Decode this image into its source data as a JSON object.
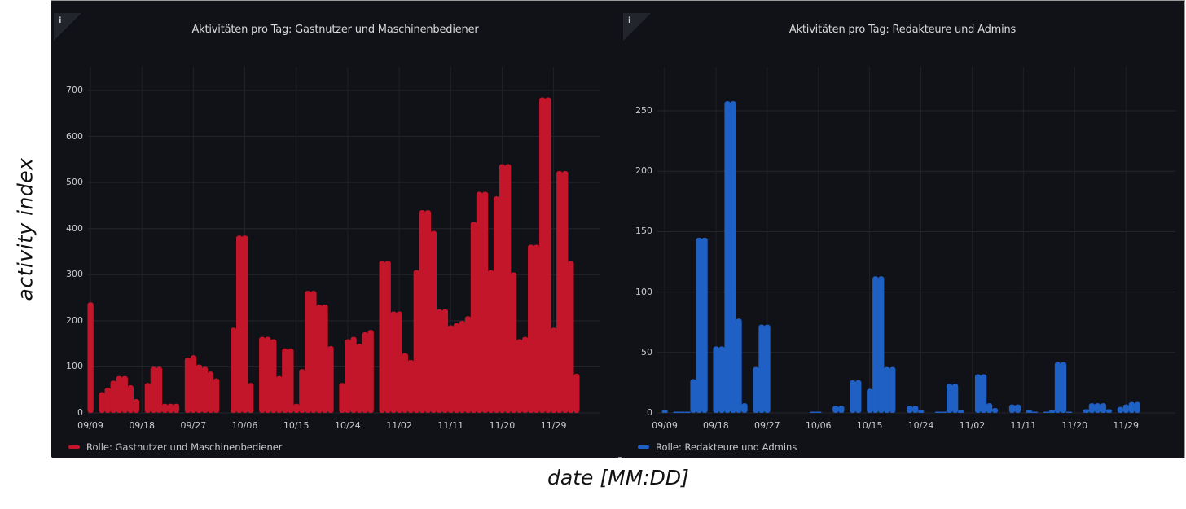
{
  "figure": {
    "ylabel": "activity index",
    "xlabel": "date [MM:DD]"
  },
  "panels": [
    {
      "title": "Aktivitäten pro Tag: Gastnutzer und Maschinenbediener",
      "info_icon": "i",
      "legend": "Rolle: Gastnutzer und Maschinenbediener",
      "color": "#c4162a"
    },
    {
      "title": "Aktivitäten pro Tag: Redakteure und Admins",
      "info_icon": "i",
      "legend": "Rolle: Redakteure und Admins",
      "color": "#1f60c4"
    }
  ],
  "chart_data": [
    {
      "type": "bar",
      "title": "Aktivitäten pro Tag: Gastnutzer und Maschinenbediener",
      "xlabel": "date [MM:DD]",
      "ylabel": "activity index",
      "ylim": [
        0,
        700
      ],
      "yticks": [
        0,
        100,
        200,
        300,
        400,
        500,
        600,
        700
      ],
      "xticks": [
        "09/09",
        "09/18",
        "09/27",
        "10/06",
        "10/15",
        "10/24",
        "11/02",
        "11/11",
        "11/20",
        "11/29"
      ],
      "grid": true,
      "legend_position": "bottom-left",
      "start_date": "09/09",
      "series": [
        {
          "name": "Rolle: Gastnutzer und Maschinenbediener",
          "color": "#c4162a",
          "values": [
            240,
            0,
            45,
            55,
            70,
            80,
            80,
            60,
            30,
            0,
            65,
            100,
            100,
            20,
            20,
            20,
            0,
            120,
            125,
            105,
            100,
            90,
            75,
            0,
            0,
            185,
            385,
            385,
            65,
            0,
            165,
            165,
            160,
            80,
            140,
            140,
            20,
            95,
            265,
            265,
            235,
            235,
            145,
            0,
            65,
            160,
            165,
            150,
            175,
            180,
            0,
            330,
            330,
            220,
            220,
            130,
            115,
            310,
            440,
            440,
            395,
            225,
            225,
            190,
            195,
            200,
            210,
            415,
            480,
            480,
            310,
            470,
            540,
            540,
            305,
            160,
            165,
            365,
            365,
            685,
            685,
            185,
            525,
            525,
            330,
            85
          ]
        }
      ]
    },
    {
      "type": "bar",
      "title": "Aktivitäten pro Tag: Redakteure und Admins",
      "xlabel": "date [MM:DD]",
      "ylabel": "activity index",
      "ylim": [
        0,
        265
      ],
      "yticks": [
        0,
        50,
        100,
        150,
        200,
        250
      ],
      "xticks": [
        "09/09",
        "09/18",
        "09/27",
        "10/06",
        "10/15",
        "10/24",
        "11/02",
        "11/11",
        "11/20",
        "11/29"
      ],
      "grid": true,
      "legend_position": "bottom-left",
      "start_date": "09/09",
      "series": [
        {
          "name": "Rolle: Redakteure und Admins",
          "color": "#1f60c4",
          "values": [
            2,
            0,
            1,
            1,
            1,
            28,
            145,
            145,
            0,
            55,
            55,
            258,
            258,
            78,
            8,
            0,
            38,
            73,
            73,
            0,
            0,
            0,
            0,
            0,
            0,
            0,
            1,
            1,
            0,
            0,
            6,
            6,
            0,
            27,
            27,
            0,
            20,
            113,
            113,
            38,
            38,
            0,
            0,
            6,
            6,
            2,
            0,
            0,
            1,
            1,
            24,
            24,
            2,
            0,
            0,
            32,
            32,
            8,
            4,
            0,
            0,
            7,
            7,
            0,
            2,
            1,
            0,
            1,
            2,
            42,
            42,
            1,
            0,
            0,
            3,
            8,
            8,
            8,
            3,
            0,
            5,
            7,
            9,
            9
          ]
        }
      ]
    }
  ]
}
